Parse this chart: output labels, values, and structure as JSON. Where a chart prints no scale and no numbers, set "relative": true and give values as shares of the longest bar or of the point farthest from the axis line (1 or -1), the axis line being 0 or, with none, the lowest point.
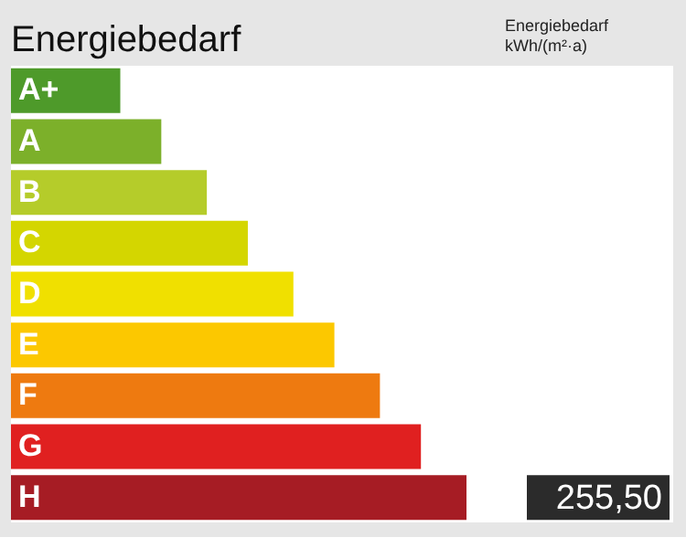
{
  "chart_data": {
    "type": "bar",
    "orientation": "horizontal",
    "relative": true,
    "title": "Energiebedarf",
    "annotations": [
      "Energiebedarf",
      "kWh/(m²·a)",
      "255,50"
    ],
    "categories": [
      "A+",
      "A",
      "B",
      "C",
      "D",
      "E",
      "F",
      "G",
      "H"
    ],
    "values": [
      0.24,
      0.33,
      0.43,
      0.52,
      0.62,
      0.71,
      0.81,
      0.9,
      1
    ],
    "colors": [
      "#4e9a2a",
      "#7cb02a",
      "#b5cc2a",
      "#d4d600",
      "#f0e000",
      "#fcc800",
      "#ee7a10",
      "#e02020",
      "#a61c24"
    ]
  }
}
